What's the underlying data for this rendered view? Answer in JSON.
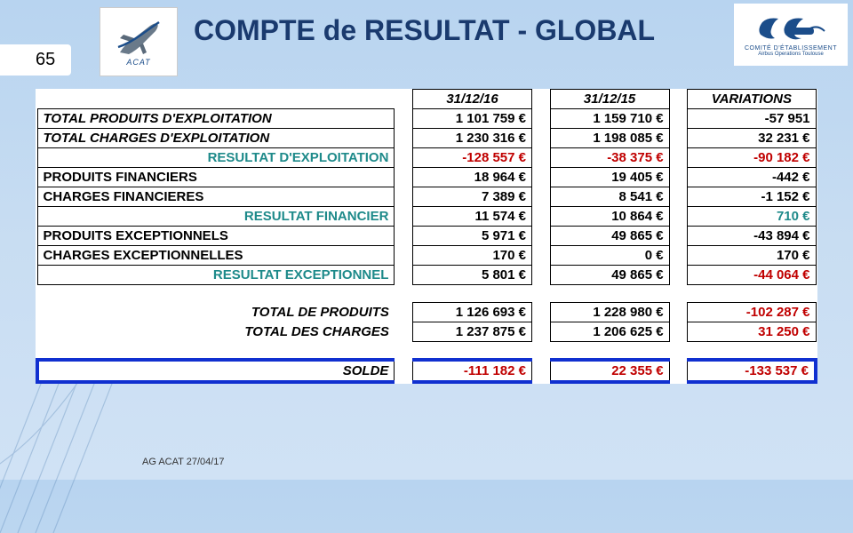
{
  "slide_number": "65",
  "title": "COMPTE de RESULTAT - GLOBAL",
  "footer": "AG ACAT 27/04/17",
  "logo_left_label": "ACAT",
  "logo_right_line1": "COMITÉ D'ÉTABLISSEMENT",
  "logo_right_line2": "Airbus Operations Toulouse",
  "colors": {
    "background_top": "#b8d4f0",
    "background_bottom": "#d0e2f5",
    "title_color": "#1a3a6e",
    "teal": "#1e8a8a",
    "red": "#c00000",
    "highlight_border": "#1030d0",
    "table_border": "#000000",
    "table_bg": "#ffffff"
  },
  "fonts": {
    "title_size_pt": 24,
    "body_size_pt": 11,
    "footer_size_pt": 8
  },
  "table": {
    "headers": {
      "col1": "31/12/16",
      "col2": "31/12/15",
      "col3": "VARIATIONS"
    },
    "rows": [
      {
        "label": "TOTAL PRODUITS D'EXPLOITATION",
        "label_style": "bold italic",
        "c1": "1 101 759 €",
        "c2": "1 159 710 €",
        "c3": "-57 951",
        "c1_style": "bold",
        "c2_style": "bold",
        "c3_style": "bold"
      },
      {
        "label": "TOTAL CHARGES D'EXPLOITATION",
        "label_style": "bold italic",
        "c1": "1 230 316 €",
        "c2": "1 198 085 €",
        "c3": "32 231 €",
        "c1_style": "bold",
        "c2_style": "bold",
        "c3_style": "bold"
      },
      {
        "label": "RESULTAT D'EXPLOITATION",
        "label_style": "bold teal right",
        "c1": "-128 557 €",
        "c2": "-38 375 €",
        "c3": "-90 182 €",
        "c1_style": "bold red",
        "c2_style": "bold red",
        "c3_style": "bold red"
      },
      {
        "label": "PRODUITS FINANCIERS",
        "label_style": "bold",
        "c1": "18 964 €",
        "c2": "19 405 €",
        "c3": "-442 €",
        "c1_style": "bold",
        "c2_style": "bold",
        "c3_style": "bold"
      },
      {
        "label": "CHARGES FINANCIERES",
        "label_style": "bold",
        "c1": "7 389 €",
        "c2": "8 541 €",
        "c3": "-1 152 €",
        "c1_style": "bold",
        "c2_style": "bold",
        "c3_style": "bold"
      },
      {
        "label": "RESULTAT FINANCIER",
        "label_style": "bold teal right",
        "c1": "11 574 €",
        "c2": "10 864 €",
        "c3": "710 €",
        "c1_style": "bold",
        "c2_style": "bold",
        "c3_style": "bold teal"
      },
      {
        "label": "PRODUITS EXCEPTIONNELS",
        "label_style": "bold",
        "c1": "5 971 €",
        "c2": "49 865 €",
        "c3": "-43 894 €",
        "c1_style": "bold",
        "c2_style": "bold",
        "c3_style": "bold"
      },
      {
        "label": "CHARGES EXCEPTIONNELLES",
        "label_style": "bold",
        "c1": "170 €",
        "c2": "0 €",
        "c3": "170 €",
        "c1_style": "bold",
        "c2_style": "bold",
        "c3_style": "bold"
      },
      {
        "label": "RESULTAT EXCEPTIONNEL",
        "label_style": "bold teal right",
        "c1": "5 801 €",
        "c2": "49 865 €",
        "c3": "-44 064 €",
        "c1_style": "bold",
        "c2_style": "bold",
        "c3_style": "bold red"
      }
    ],
    "totals": [
      {
        "label": "TOTAL DE PRODUITS",
        "label_style": "bold italic right",
        "c1": "1 126 693 €",
        "c2": "1 228 980 €",
        "c3": "-102 287 €",
        "c1_style": "bold",
        "c2_style": "bold",
        "c3_style": "bold red"
      },
      {
        "label": "TOTAL DES CHARGES",
        "label_style": "bold italic right",
        "c1": "1 237 875 €",
        "c2": "1 206 625 €",
        "c3": "31 250 €",
        "c1_style": "bold",
        "c2_style": "bold",
        "c3_style": "bold red"
      }
    ],
    "solde": {
      "label": "SOLDE",
      "label_style": "bold italic right",
      "c1": "-111 182 €",
      "c2": "22 355 €",
      "c3": "-133 537 €",
      "c1_style": "bold red",
      "c2_style": "bold red",
      "c3_style": "bold red"
    }
  }
}
